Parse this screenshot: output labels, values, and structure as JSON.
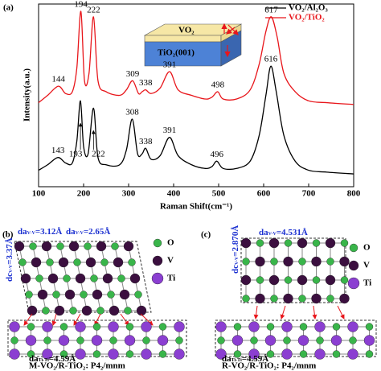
{
  "chart_data": {
    "type": "line",
    "panel_label": "(a)",
    "x_label": "Raman Shift(cm⁻¹)",
    "y_label": "Intensity(a.u.)",
    "xlim": [
      100,
      800
    ],
    "xticks": [
      100,
      200,
      300,
      400,
      500,
      600,
      700,
      800
    ],
    "ylim": [
      0,
      100
    ],
    "series": [
      {
        "name": "VO₂/Al₂O₃",
        "color": "#000000",
        "x": [
          100,
          120,
          143,
          160,
          175,
          185,
          193,
          200,
          210,
          222,
          232,
          250,
          280,
          295,
          308,
          320,
          330,
          338,
          350,
          370,
          391,
          410,
          440,
          470,
          485,
          496,
          510,
          540,
          570,
          590,
          605,
          616,
          628,
          645,
          670,
          700,
          740,
          800
        ],
        "values": [
          9,
          12,
          16,
          13,
          13,
          25,
          47,
          22,
          18,
          43,
          16,
          12,
          12,
          20,
          37,
          18,
          18,
          21,
          15,
          17,
          27,
          17,
          12,
          10,
          11,
          14,
          10,
          10,
          14,
          28,
          50,
          66,
          52,
          28,
          14,
          9,
          8,
          7
        ],
        "peaks": [
          143,
          193,
          222,
          308,
          338,
          391,
          496,
          616
        ]
      },
      {
        "name": "VO₂/TiO₂",
        "color": "#e8161b",
        "x": [
          100,
          120,
          144,
          160,
          175,
          185,
          194,
          202,
          212,
          222,
          232,
          250,
          280,
          295,
          309,
          322,
          330,
          338,
          350,
          370,
          391,
          410,
          440,
          470,
          485,
          498,
          510,
          540,
          570,
          590,
          605,
          617,
          630,
          645,
          670,
          700,
          740,
          800
        ],
        "values": [
          46,
          50,
          55,
          51,
          52,
          65,
          96,
          58,
          62,
          93,
          58,
          52,
          50,
          53,
          58,
          51,
          52,
          53,
          51,
          54,
          63,
          53,
          50,
          48,
          49,
          52,
          48,
          48,
          53,
          67,
          85,
          93,
          82,
          62,
          52,
          47,
          46,
          45
        ],
        "peaks": [
          144,
          194,
          222,
          309,
          338,
          391,
          498,
          617
        ]
      }
    ],
    "inset": {
      "film": "VO₂",
      "substrate": "TiO₂(001)"
    }
  },
  "panel_b": {
    "label": "(b)",
    "legend": [
      "O",
      "V",
      "Ti"
    ],
    "da_1": {
      "main": "da",
      "sub": "V-V",
      "rest": "=3.12Å"
    },
    "da_2": {
      "main": "da",
      "sub": "V-V",
      "rest": "=2.65Å"
    },
    "dc": {
      "main": "dc",
      "sub": "V-V",
      "rest": "=3.37Å"
    },
    "da_sub": {
      "main": "da",
      "sub": "Ti-Ti",
      "rest": "=4.59Å"
    },
    "phase": "M-VO₂/R-TiO₂: P4₂/mnm"
  },
  "panel_c": {
    "label": "(c)",
    "legend": [
      "O",
      "V",
      "Ti"
    ],
    "da": {
      "main": "da",
      "sub": "V-V",
      "rest": "=4.531Å"
    },
    "dc": {
      "main": "dc",
      "sub": "V-V",
      "rest": "=2.870Å"
    },
    "da_sub": {
      "main": "da",
      "sub": "Ti-Ti",
      "rest": "=4.59Å"
    },
    "phase": "R-VO₂/R-TiO₂: P4₂/mnm"
  }
}
